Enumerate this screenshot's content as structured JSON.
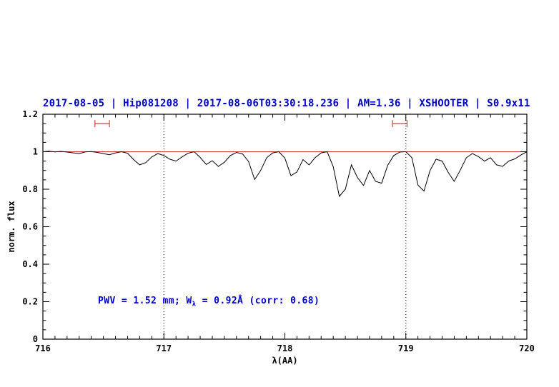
{
  "header": {
    "title": "2017-08-05 | Hip081208 | 2017-08-06T03:30:18.236 | AM=1.36 | XSHOOTER | S0.9x11"
  },
  "annotation": {
    "prefix": "PWV = 1.52 mm; W",
    "sub": "λ",
    "suffix": " = 0.92Å (corr: 0.68)"
  },
  "colors": {
    "title_blue": "#0000cc",
    "line_black": "#000000",
    "continuum_red": "#cc3333",
    "marker_red": "#cc4444"
  },
  "chart_data": {
    "type": "line",
    "title": "2017-08-05 | Hip081208 | 2017-08-06T03:30:18.236 | AM=1.36 | XSHOOTER | S0.9x11",
    "xlabel": "λ(AA)",
    "ylabel": "norm. flux",
    "xlim": [
      716,
      720
    ],
    "ylim": [
      0,
      1.2
    ],
    "x_ticks": [
      716,
      717,
      718,
      719,
      720
    ],
    "x_tick_labels": [
      "716",
      "717",
      "718",
      "719",
      "720"
    ],
    "y_ticks": [
      0,
      0.2,
      0.4,
      0.6,
      0.8,
      1,
      1.2
    ],
    "y_tick_labels": [
      "0",
      "0.2",
      "0.4",
      "0.6",
      "0.8",
      "1",
      "1.2"
    ],
    "grid": false,
    "legend": "none",
    "vlines": [
      717,
      719
    ],
    "hlines": [
      {
        "y": 1.0,
        "color": "#cc3333",
        "name": "continuum"
      }
    ],
    "window_markers": [
      {
        "x": 716.49,
        "y": 1.15,
        "halfwidth": 0.06
      },
      {
        "x": 718.95,
        "y": 1.15,
        "halfwidth": 0.06
      }
    ],
    "annotations": [
      {
        "x": 716.45,
        "y": 0.2,
        "text": "PWV = 1.52 mm; Wλ = 0.92Å (corr: 0.68)"
      }
    ],
    "series": [
      {
        "name": "telluric-spectrum",
        "color": "#000000",
        "x0": 716.0,
        "dx": 0.05,
        "y": [
          1.0,
          1.003,
          0.999,
          1.002,
          0.998,
          0.994,
          0.99,
          0.999,
          1.001,
          0.996,
          0.99,
          0.984,
          0.994,
          1.0,
          0.992,
          0.958,
          0.93,
          0.942,
          0.972,
          0.99,
          0.98,
          0.96,
          0.95,
          0.972,
          0.992,
          1.0,
          0.97,
          0.932,
          0.952,
          0.922,
          0.944,
          0.98,
          0.996,
          0.988,
          0.948,
          0.852,
          0.9,
          0.968,
          0.994,
          1.0,
          0.966,
          0.872,
          0.892,
          0.958,
          0.93,
          0.968,
          0.994,
          1.0,
          0.92,
          0.762,
          0.8,
          0.93,
          0.862,
          0.82,
          0.9,
          0.842,
          0.832,
          0.928,
          0.98,
          0.998,
          1.0,
          0.968,
          0.822,
          0.79,
          0.9,
          0.96,
          0.95,
          0.89,
          0.842,
          0.902,
          0.968,
          0.99,
          0.974,
          0.95,
          0.968,
          0.93,
          0.922,
          0.95,
          0.962,
          0.982,
          1.0
        ]
      }
    ]
  }
}
